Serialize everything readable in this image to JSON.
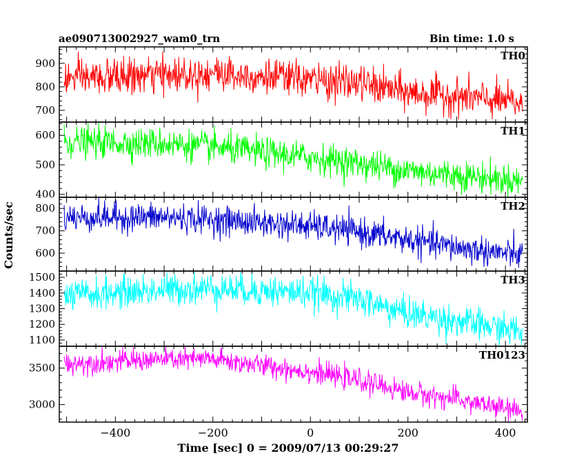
{
  "header": {
    "title": "ae090713002927_wam0_trn",
    "bin_time": "Bin time: 1.0 s"
  },
  "chart_data": {
    "type": "line",
    "xlabel": "Time [sec] 0 = 2009/07/13 00:29:27",
    "ylabel": "Counts/sec",
    "xlim": [
      -515,
      445
    ],
    "x_ticks": [
      -400,
      -200,
      0,
      200,
      400
    ],
    "x_start": -505,
    "x_end": 435,
    "bin_time": 1.0,
    "grid": false,
    "panels": [
      {
        "name": "TH0",
        "color": "#ff0000",
        "ylim": [
          650,
          970
        ],
        "y_ticks": [
          700,
          800,
          900
        ],
        "trend_x": [
          -505,
          -300,
          -200,
          0,
          100,
          200,
          300,
          435
        ],
        "trend_y": [
          835,
          850,
          860,
          830,
          815,
          775,
          760,
          730
        ],
        "noise": 38
      },
      {
        "name": "TH1",
        "color": "#00ff00",
        "ylim": [
          390,
          645
        ],
        "y_ticks": [
          400,
          500,
          600
        ],
        "trend_x": [
          -505,
          -300,
          -200,
          0,
          100,
          200,
          300,
          435
        ],
        "trend_y": [
          578,
          572,
          560,
          525,
          505,
          480,
          465,
          445
        ],
        "noise": 26
      },
      {
        "name": "TH2",
        "color": "#0000cc",
        "ylim": [
          520,
          850
        ],
        "y_ticks": [
          600,
          700,
          800
        ],
        "trend_x": [
          -505,
          -300,
          -200,
          0,
          100,
          200,
          300,
          435
        ],
        "trend_y": [
          760,
          760,
          750,
          720,
          695,
          660,
          625,
          590
        ],
        "noise": 32
      },
      {
        "name": "TH3",
        "color": "#00ffff",
        "ylim": [
          1060,
          1540
        ],
        "y_ticks": [
          1100,
          1200,
          1300,
          1400,
          1500
        ],
        "trend_x": [
          -505,
          -300,
          -200,
          0,
          100,
          150,
          200,
          300,
          435
        ],
        "trend_y": [
          1380,
          1420,
          1430,
          1400,
          1360,
          1310,
          1270,
          1220,
          1150
        ],
        "noise": 50
      },
      {
        "name": "TH0123",
        "color": "#ff00ff",
        "ylim": [
          2760,
          3800
        ],
        "y_ticks": [
          3000,
          3500
        ],
        "trend_x": [
          -505,
          -300,
          -200,
          0,
          100,
          200,
          300,
          435
        ],
        "trend_y": [
          3560,
          3620,
          3620,
          3450,
          3330,
          3170,
          3070,
          2900
        ],
        "noise": 75
      }
    ]
  }
}
